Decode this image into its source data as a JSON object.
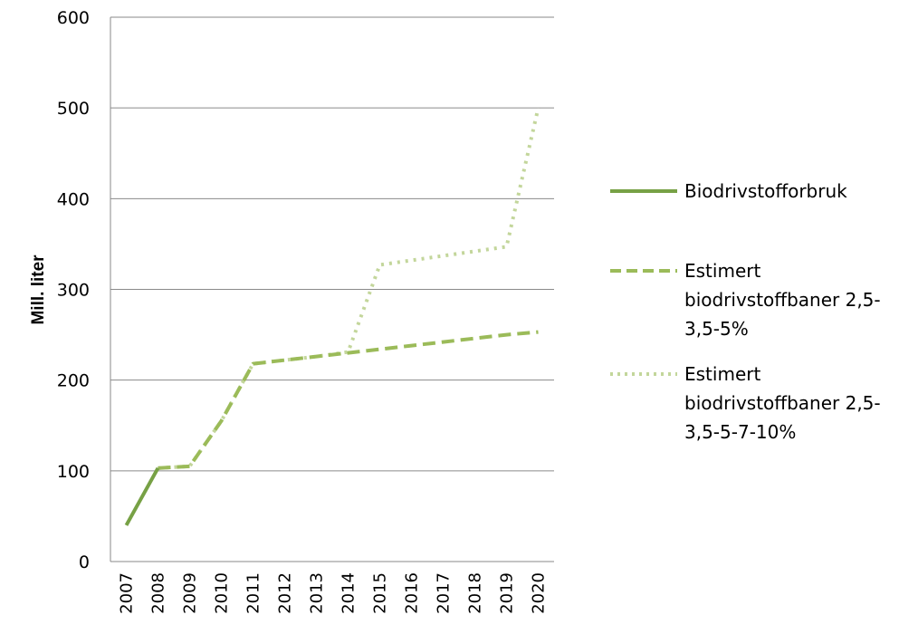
{
  "chart_data": {
    "type": "line",
    "title": "",
    "xlabel": "",
    "ylabel": "Mill. liter",
    "ylim": [
      0,
      600
    ],
    "yticks": [
      "0",
      "100",
      "200",
      "300",
      "400",
      "500",
      "600"
    ],
    "x": [
      "2007",
      "2008",
      "2009",
      "2010",
      "2011",
      "2012",
      "2013",
      "2014",
      "2015",
      "2016",
      "2017",
      "2018",
      "2019",
      "2020"
    ],
    "grid": true,
    "legend_position": "right",
    "series": [
      {
        "name": "Biodrivstofforbruk",
        "style": "solid",
        "color": "#77a145",
        "values": [
          40,
          103,
          null,
          null,
          null,
          null,
          null,
          null,
          null,
          null,
          null,
          null,
          null,
          null
        ]
      },
      {
        "name": "Estimert biodrivstoffbaner 2,5-3,5-5%",
        "style": "dashed",
        "color": "#9bbb59",
        "values": [
          null,
          103,
          105,
          155,
          218,
          222,
          226,
          230,
          234,
          238,
          242,
          246,
          250,
          253
        ]
      },
      {
        "name": "Estimert biodrivstoffbaner 2,5-3,5-5-7-10%",
        "style": "dotted",
        "color": "#c3d69b",
        "values": [
          null,
          103,
          105,
          155,
          218,
          222,
          226,
          231,
          327,
          332,
          337,
          342,
          347,
          500
        ]
      }
    ]
  }
}
